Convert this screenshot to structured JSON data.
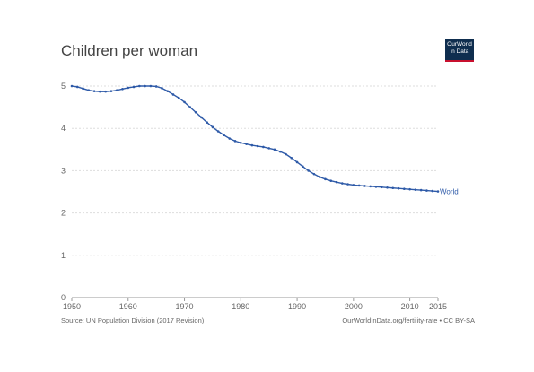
{
  "header": {
    "title": "Children per woman",
    "logo_text": "OurWorld in Data"
  },
  "footer": {
    "source": "Source: UN Population Division (2017 Revision)",
    "credit": "OurWorldInData.org/fertility-rate • CC BY-SA"
  },
  "colors": {
    "series": "#2e5aa8",
    "grid": "#dddddd",
    "axis": "#999999",
    "text": "#666666",
    "logo_bg": "#0f2e4f",
    "logo_accent": "#c8102e"
  },
  "chart_data": {
    "type": "line",
    "title": "Children per woman",
    "xlabel": "",
    "ylabel": "",
    "xlim": [
      1950,
      2015
    ],
    "ylim": [
      0,
      5
    ],
    "grid": true,
    "x_ticks": [
      1950,
      1960,
      1970,
      1980,
      1990,
      2000,
      2010,
      2015
    ],
    "y_ticks": [
      0,
      1,
      2,
      3,
      4,
      5
    ],
    "x": [
      1950,
      1951,
      1952,
      1953,
      1954,
      1955,
      1956,
      1957,
      1958,
      1959,
      1960,
      1961,
      1962,
      1963,
      1964,
      1965,
      1966,
      1967,
      1968,
      1969,
      1970,
      1971,
      1972,
      1973,
      1974,
      1975,
      1976,
      1977,
      1978,
      1979,
      1980,
      1981,
      1982,
      1983,
      1984,
      1985,
      1986,
      1987,
      1988,
      1989,
      1990,
      1991,
      1992,
      1993,
      1994,
      1995,
      1996,
      1997,
      1998,
      1999,
      2000,
      2001,
      2002,
      2003,
      2004,
      2005,
      2006,
      2007,
      2008,
      2009,
      2010,
      2011,
      2012,
      2013,
      2014,
      2015
    ],
    "series": [
      {
        "name": "World",
        "values": [
          5.0,
          4.98,
          4.94,
          4.9,
          4.88,
          4.87,
          4.87,
          4.88,
          4.9,
          4.93,
          4.96,
          4.98,
          5.0,
          5.0,
          5.0,
          4.99,
          4.95,
          4.88,
          4.8,
          4.72,
          4.62,
          4.5,
          4.38,
          4.26,
          4.14,
          4.03,
          3.93,
          3.84,
          3.76,
          3.7,
          3.66,
          3.63,
          3.6,
          3.58,
          3.56,
          3.53,
          3.5,
          3.45,
          3.39,
          3.3,
          3.2,
          3.1,
          3.0,
          2.92,
          2.85,
          2.8,
          2.76,
          2.73,
          2.7,
          2.68,
          2.66,
          2.65,
          2.64,
          2.63,
          2.62,
          2.61,
          2.6,
          2.59,
          2.58,
          2.57,
          2.56,
          2.55,
          2.54,
          2.53,
          2.52,
          2.51
        ]
      }
    ]
  }
}
